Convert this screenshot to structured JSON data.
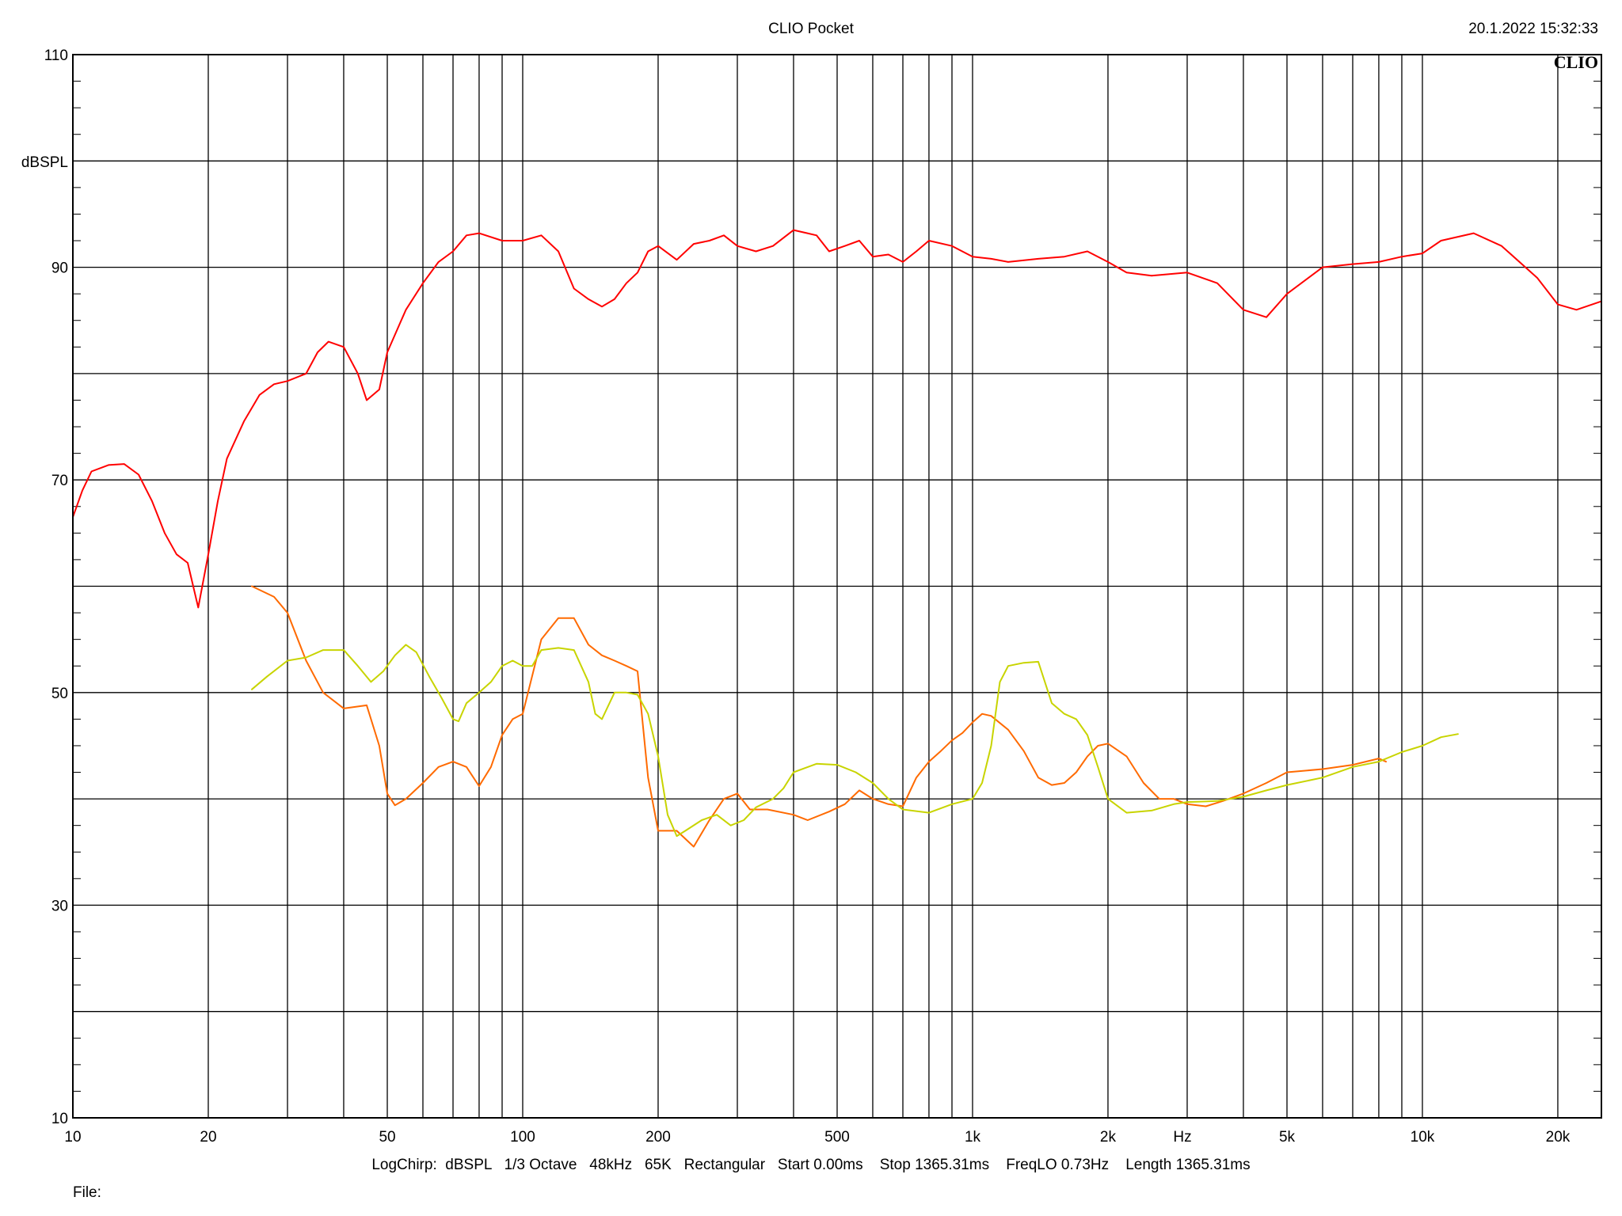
{
  "header": {
    "title": "CLIO Pocket",
    "timestamp": "20.1.2022 15:32:33",
    "logo": "CLIO"
  },
  "footer": {
    "settings": "LogChirp:  dBSPL   1/3 Octave   48kHz   65K   Rectangular   Start 0.00ms    Stop 1365.31ms    FreqLO 0.73Hz    Length 1365.31ms",
    "file_label": "File:"
  },
  "chart_data": {
    "type": "line",
    "title": "CLIO Pocket",
    "xlabel": "Hz",
    "ylabel": "dBSPL",
    "xscale": "log",
    "xlim": [
      10,
      25000
    ],
    "ylim": [
      10,
      110
    ],
    "grid": true,
    "x_ticks": [
      {
        "value": 10,
        "label": "10"
      },
      {
        "value": 20,
        "label": "20"
      },
      {
        "value": 50,
        "label": "50"
      },
      {
        "value": 100,
        "label": "100"
      },
      {
        "value": 200,
        "label": "200"
      },
      {
        "value": 500,
        "label": "500"
      },
      {
        "value": 1000,
        "label": "1k"
      },
      {
        "value": 2000,
        "label": "2k"
      },
      {
        "value": 5000,
        "label": "5k"
      },
      {
        "value": 10000,
        "label": "10k"
      },
      {
        "value": 20000,
        "label": "20k"
      }
    ],
    "y_ticks": [
      {
        "value": 110,
        "label": "110"
      },
      {
        "value": 90,
        "label": "90"
      },
      {
        "value": 70,
        "label": "70"
      },
      {
        "value": 50,
        "label": "50"
      },
      {
        "value": 30,
        "label": "30"
      },
      {
        "value": 10,
        "label": "10"
      }
    ],
    "series": [
      {
        "color": "#ff0000",
        "points": [
          [
            10,
            66.5
          ],
          [
            10.5,
            69
          ],
          [
            11,
            70.8
          ],
          [
            12,
            71.4
          ],
          [
            13,
            71.5
          ],
          [
            14,
            70.5
          ],
          [
            15,
            68
          ],
          [
            16,
            65
          ],
          [
            17,
            63
          ],
          [
            18,
            62.2
          ],
          [
            19,
            58
          ],
          [
            20,
            63
          ],
          [
            21,
            68
          ],
          [
            22,
            72
          ],
          [
            24,
            75.5
          ],
          [
            26,
            78
          ],
          [
            28,
            79
          ],
          [
            30,
            79.3
          ],
          [
            33,
            80
          ],
          [
            35,
            82
          ],
          [
            37,
            83
          ],
          [
            40,
            82.5
          ],
          [
            43,
            80
          ],
          [
            45,
            77.5
          ],
          [
            48,
            78.5
          ],
          [
            50,
            82
          ],
          [
            55,
            86
          ],
          [
            60,
            88.5
          ],
          [
            65,
            90.5
          ],
          [
            70,
            91.5
          ],
          [
            75,
            93
          ],
          [
            80,
            93.2
          ],
          [
            90,
            92.5
          ],
          [
            100,
            92.5
          ],
          [
            110,
            93
          ],
          [
            120,
            91.5
          ],
          [
            130,
            88
          ],
          [
            140,
            87
          ],
          [
            150,
            86.3
          ],
          [
            160,
            87
          ],
          [
            170,
            88.5
          ],
          [
            180,
            89.5
          ],
          [
            190,
            91.5
          ],
          [
            200,
            92
          ],
          [
            220,
            90.7
          ],
          [
            240,
            92.2
          ],
          [
            260,
            92.5
          ],
          [
            280,
            93
          ],
          [
            300,
            92
          ],
          [
            330,
            91.5
          ],
          [
            360,
            92
          ],
          [
            400,
            93.5
          ],
          [
            450,
            93
          ],
          [
            480,
            91.5
          ],
          [
            520,
            92
          ],
          [
            560,
            92.5
          ],
          [
            600,
            91
          ],
          [
            650,
            91.2
          ],
          [
            700,
            90.5
          ],
          [
            750,
            91.5
          ],
          [
            800,
            92.5
          ],
          [
            900,
            92
          ],
          [
            1000,
            91
          ],
          [
            1100,
            90.8
          ],
          [
            1200,
            90.5
          ],
          [
            1400,
            90.8
          ],
          [
            1600,
            91
          ],
          [
            1800,
            91.5
          ],
          [
            2000,
            90.5
          ],
          [
            2200,
            89.5
          ],
          [
            2500,
            89.2
          ],
          [
            3000,
            89.5
          ],
          [
            3500,
            88.5
          ],
          [
            4000,
            86
          ],
          [
            4500,
            85.3
          ],
          [
            5000,
            87.5
          ],
          [
            6000,
            90
          ],
          [
            7000,
            90.3
          ],
          [
            8000,
            90.5
          ],
          [
            9000,
            91
          ],
          [
            10000,
            91.3
          ],
          [
            11000,
            92.5
          ],
          [
            13000,
            93.2
          ],
          [
            15000,
            92
          ],
          [
            18000,
            89
          ],
          [
            20000,
            86.5
          ],
          [
            22000,
            86
          ],
          [
            25000,
            86.8
          ]
        ]
      },
      {
        "color": "#ff6a00",
        "points": [
          [
            25,
            60
          ],
          [
            28,
            59
          ],
          [
            30,
            57.5
          ],
          [
            33,
            53
          ],
          [
            36,
            50
          ],
          [
            40,
            48.5
          ],
          [
            45,
            48.8
          ],
          [
            48,
            45
          ],
          [
            50,
            40.5
          ],
          [
            52,
            39.4
          ],
          [
            55,
            40
          ],
          [
            60,
            41.5
          ],
          [
            65,
            43
          ],
          [
            70,
            43.5
          ],
          [
            75,
            43
          ],
          [
            80,
            41.2
          ],
          [
            85,
            43
          ],
          [
            90,
            46
          ],
          [
            95,
            47.5
          ],
          [
            100,
            48
          ],
          [
            110,
            55
          ],
          [
            120,
            57
          ],
          [
            130,
            57
          ],
          [
            140,
            54.5
          ],
          [
            150,
            53.5
          ],
          [
            160,
            53
          ],
          [
            170,
            52.5
          ],
          [
            180,
            52
          ],
          [
            190,
            42
          ],
          [
            200,
            37
          ],
          [
            220,
            37
          ],
          [
            240,
            35.5
          ],
          [
            260,
            38
          ],
          [
            280,
            40
          ],
          [
            300,
            40.5
          ],
          [
            320,
            39
          ],
          [
            350,
            39
          ],
          [
            400,
            38.5
          ],
          [
            430,
            38
          ],
          [
            480,
            38.8
          ],
          [
            520,
            39.5
          ],
          [
            560,
            40.8
          ],
          [
            600,
            40
          ],
          [
            650,
            39.5
          ],
          [
            700,
            39.3
          ],
          [
            750,
            42
          ],
          [
            800,
            43.5
          ],
          [
            850,
            44.5
          ],
          [
            900,
            45.5
          ],
          [
            950,
            46.2
          ],
          [
            1000,
            47.2
          ],
          [
            1050,
            48
          ],
          [
            1100,
            47.8
          ],
          [
            1200,
            46.5
          ],
          [
            1300,
            44.5
          ],
          [
            1400,
            42
          ],
          [
            1500,
            41.3
          ],
          [
            1600,
            41.5
          ],
          [
            1700,
            42.5
          ],
          [
            1800,
            44
          ],
          [
            1900,
            45
          ],
          [
            2000,
            45.2
          ],
          [
            2200,
            44
          ],
          [
            2400,
            41.5
          ],
          [
            2600,
            40
          ],
          [
            2800,
            40
          ],
          [
            3000,
            39.5
          ],
          [
            3300,
            39.3
          ],
          [
            3600,
            39.8
          ],
          [
            4000,
            40.5
          ],
          [
            4500,
            41.5
          ],
          [
            5000,
            42.5
          ],
          [
            6000,
            42.8
          ],
          [
            7000,
            43.2
          ],
          [
            8000,
            43.8
          ],
          [
            8300,
            43.5
          ]
        ]
      },
      {
        "color": "#c8d400",
        "points": [
          [
            25,
            50.3
          ],
          [
            27,
            51.5
          ],
          [
            30,
            53
          ],
          [
            33,
            53.3
          ],
          [
            36,
            54
          ],
          [
            40,
            54
          ],
          [
            43,
            52.5
          ],
          [
            46,
            51
          ],
          [
            49,
            52
          ],
          [
            52,
            53.5
          ],
          [
            55,
            54.5
          ],
          [
            58,
            53.8
          ],
          [
            62,
            51.5
          ],
          [
            66,
            49.5
          ],
          [
            70,
            47.5
          ],
          [
            72,
            47.3
          ],
          [
            75,
            49
          ],
          [
            80,
            50
          ],
          [
            85,
            51
          ],
          [
            90,
            52.5
          ],
          [
            95,
            53
          ],
          [
            100,
            52.5
          ],
          [
            105,
            52.5
          ],
          [
            110,
            54
          ],
          [
            120,
            54.2
          ],
          [
            130,
            54
          ],
          [
            140,
            51
          ],
          [
            145,
            48
          ],
          [
            150,
            47.5
          ],
          [
            160,
            50
          ],
          [
            170,
            50
          ],
          [
            180,
            49.8
          ],
          [
            190,
            48
          ],
          [
            200,
            44
          ],
          [
            210,
            38.5
          ],
          [
            220,
            36.5
          ],
          [
            230,
            37
          ],
          [
            250,
            38
          ],
          [
            270,
            38.5
          ],
          [
            290,
            37.5
          ],
          [
            310,
            38
          ],
          [
            330,
            39.2
          ],
          [
            360,
            40
          ],
          [
            380,
            41
          ],
          [
            400,
            42.5
          ],
          [
            450,
            43.3
          ],
          [
            500,
            43.2
          ],
          [
            550,
            42.5
          ],
          [
            600,
            41.5
          ],
          [
            650,
            40
          ],
          [
            700,
            39
          ],
          [
            800,
            38.7
          ],
          [
            900,
            39.5
          ],
          [
            1000,
            40
          ],
          [
            1050,
            41.5
          ],
          [
            1100,
            45
          ],
          [
            1150,
            51
          ],
          [
            1200,
            52.5
          ],
          [
            1300,
            52.8
          ],
          [
            1400,
            52.9
          ],
          [
            1500,
            49
          ],
          [
            1600,
            48
          ],
          [
            1700,
            47.5
          ],
          [
            1800,
            46
          ],
          [
            1900,
            43
          ],
          [
            2000,
            40
          ],
          [
            2200,
            38.7
          ],
          [
            2500,
            38.9
          ],
          [
            2800,
            39.5
          ],
          [
            3000,
            39.7
          ],
          [
            3500,
            39.8
          ],
          [
            4000,
            40.2
          ],
          [
            4500,
            40.8
          ],
          [
            5000,
            41.3
          ],
          [
            6000,
            42
          ],
          [
            7000,
            43
          ],
          [
            8000,
            43.5
          ],
          [
            9000,
            44.4
          ],
          [
            10000,
            45
          ],
          [
            11000,
            45.8
          ],
          [
            12000,
            46.1
          ]
        ]
      }
    ]
  }
}
